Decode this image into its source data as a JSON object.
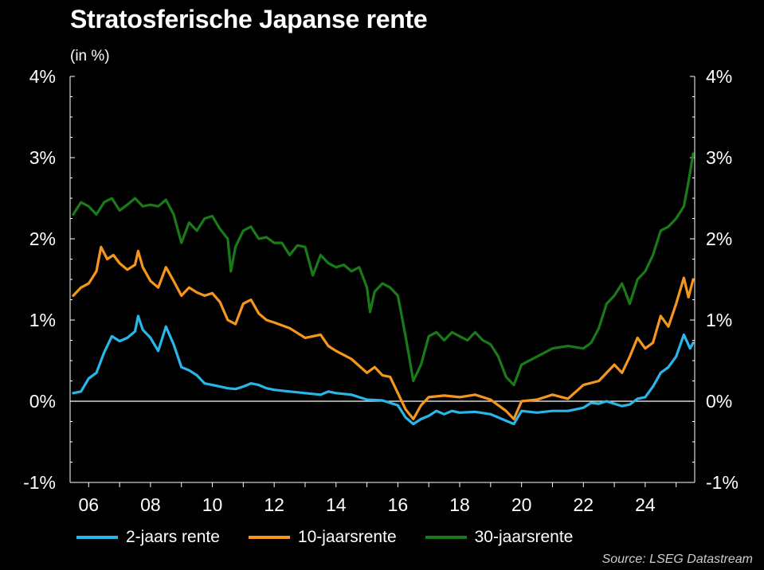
{
  "chart_data": {
    "type": "line",
    "title": "Stratosferische Japanse rente",
    "subtitle": "(in %)",
    "x_ticks": [
      "06",
      "08",
      "10",
      "12",
      "14",
      "16",
      "18",
      "20",
      "22",
      "24"
    ],
    "x_tick_years": [
      2006,
      2008,
      2010,
      2012,
      2014,
      2016,
      2018,
      2020,
      2022,
      2024
    ],
    "xlim": [
      2005.4,
      2025.6
    ],
    "y_ticks": [
      "-1%",
      "0%",
      "1%",
      "2%",
      "3%",
      "4%"
    ],
    "y_tick_values": [
      -1,
      0,
      1,
      2,
      3,
      4
    ],
    "ylim": [
      -1,
      4
    ],
    "y_axis_both_sides": true,
    "zero_line": true,
    "grid": false,
    "legend_position": "bottom",
    "series": [
      {
        "name": "2-jaars rente",
        "color": "#29b6e8",
        "points": [
          [
            2005.5,
            0.1
          ],
          [
            2005.75,
            0.12
          ],
          [
            2006.0,
            0.28
          ],
          [
            2006.25,
            0.35
          ],
          [
            2006.5,
            0.6
          ],
          [
            2006.75,
            0.8
          ],
          [
            2007.0,
            0.74
          ],
          [
            2007.25,
            0.78
          ],
          [
            2007.5,
            0.86
          ],
          [
            2007.6,
            1.05
          ],
          [
            2007.75,
            0.88
          ],
          [
            2008.0,
            0.78
          ],
          [
            2008.25,
            0.62
          ],
          [
            2008.5,
            0.92
          ],
          [
            2008.75,
            0.7
          ],
          [
            2009.0,
            0.42
          ],
          [
            2009.25,
            0.38
          ],
          [
            2009.5,
            0.32
          ],
          [
            2009.75,
            0.22
          ],
          [
            2010.0,
            0.2
          ],
          [
            2010.25,
            0.18
          ],
          [
            2010.5,
            0.16
          ],
          [
            2010.75,
            0.15
          ],
          [
            2011.0,
            0.18
          ],
          [
            2011.25,
            0.22
          ],
          [
            2011.5,
            0.2
          ],
          [
            2011.75,
            0.16
          ],
          [
            2012.0,
            0.14
          ],
          [
            2012.5,
            0.12
          ],
          [
            2013.0,
            0.1
          ],
          [
            2013.5,
            0.08
          ],
          [
            2013.75,
            0.12
          ],
          [
            2014.0,
            0.1
          ],
          [
            2014.5,
            0.08
          ],
          [
            2015.0,
            0.02
          ],
          [
            2015.5,
            0.01
          ],
          [
            2016.0,
            -0.05
          ],
          [
            2016.25,
            -0.2
          ],
          [
            2016.5,
            -0.28
          ],
          [
            2016.75,
            -0.22
          ],
          [
            2017.0,
            -0.18
          ],
          [
            2017.25,
            -0.12
          ],
          [
            2017.5,
            -0.16
          ],
          [
            2017.75,
            -0.12
          ],
          [
            2018.0,
            -0.14
          ],
          [
            2018.5,
            -0.13
          ],
          [
            2019.0,
            -0.16
          ],
          [
            2019.5,
            -0.24
          ],
          [
            2019.75,
            -0.28
          ],
          [
            2020.0,
            -0.12
          ],
          [
            2020.5,
            -0.14
          ],
          [
            2021.0,
            -0.12
          ],
          [
            2021.5,
            -0.12
          ],
          [
            2022.0,
            -0.08
          ],
          [
            2022.25,
            -0.02
          ],
          [
            2022.5,
            -0.03
          ],
          [
            2022.75,
            0.0
          ],
          [
            2023.0,
            -0.03
          ],
          [
            2023.25,
            -0.06
          ],
          [
            2023.5,
            -0.04
          ],
          [
            2023.75,
            0.03
          ],
          [
            2024.0,
            0.05
          ],
          [
            2024.25,
            0.18
          ],
          [
            2024.5,
            0.35
          ],
          [
            2024.75,
            0.42
          ],
          [
            2025.0,
            0.55
          ],
          [
            2025.25,
            0.82
          ],
          [
            2025.45,
            0.65
          ],
          [
            2025.55,
            0.72
          ]
        ]
      },
      {
        "name": "10-jaarsrente",
        "color": "#f5961e",
        "points": [
          [
            2005.5,
            1.3
          ],
          [
            2005.75,
            1.4
          ],
          [
            2006.0,
            1.45
          ],
          [
            2006.25,
            1.6
          ],
          [
            2006.4,
            1.9
          ],
          [
            2006.6,
            1.75
          ],
          [
            2006.8,
            1.8
          ],
          [
            2007.0,
            1.7
          ],
          [
            2007.25,
            1.62
          ],
          [
            2007.5,
            1.68
          ],
          [
            2007.6,
            1.85
          ],
          [
            2007.75,
            1.65
          ],
          [
            2008.0,
            1.48
          ],
          [
            2008.25,
            1.4
          ],
          [
            2008.5,
            1.65
          ],
          [
            2008.75,
            1.48
          ],
          [
            2009.0,
            1.3
          ],
          [
            2009.25,
            1.4
          ],
          [
            2009.5,
            1.34
          ],
          [
            2009.75,
            1.3
          ],
          [
            2010.0,
            1.33
          ],
          [
            2010.25,
            1.22
          ],
          [
            2010.5,
            1.0
          ],
          [
            2010.75,
            0.95
          ],
          [
            2011.0,
            1.2
          ],
          [
            2011.25,
            1.25
          ],
          [
            2011.5,
            1.08
          ],
          [
            2011.75,
            1.0
          ],
          [
            2012.0,
            0.97
          ],
          [
            2012.5,
            0.9
          ],
          [
            2013.0,
            0.78
          ],
          [
            2013.5,
            0.82
          ],
          [
            2013.75,
            0.68
          ],
          [
            2014.0,
            0.62
          ],
          [
            2014.5,
            0.52
          ],
          [
            2015.0,
            0.35
          ],
          [
            2015.25,
            0.42
          ],
          [
            2015.5,
            0.32
          ],
          [
            2015.75,
            0.3
          ],
          [
            2016.0,
            0.1
          ],
          [
            2016.25,
            -0.1
          ],
          [
            2016.5,
            -0.22
          ],
          [
            2016.75,
            -0.05
          ],
          [
            2017.0,
            0.05
          ],
          [
            2017.5,
            0.07
          ],
          [
            2018.0,
            0.05
          ],
          [
            2018.5,
            0.08
          ],
          [
            2019.0,
            0.02
          ],
          [
            2019.5,
            -0.12
          ],
          [
            2019.75,
            -0.22
          ],
          [
            2020.0,
            0.0
          ],
          [
            2020.5,
            0.02
          ],
          [
            2021.0,
            0.08
          ],
          [
            2021.5,
            0.03
          ],
          [
            2022.0,
            0.2
          ],
          [
            2022.5,
            0.25
          ],
          [
            2023.0,
            0.45
          ],
          [
            2023.25,
            0.35
          ],
          [
            2023.5,
            0.55
          ],
          [
            2023.75,
            0.78
          ],
          [
            2024.0,
            0.65
          ],
          [
            2024.25,
            0.72
          ],
          [
            2024.5,
            1.05
          ],
          [
            2024.75,
            0.92
          ],
          [
            2025.0,
            1.2
          ],
          [
            2025.25,
            1.52
          ],
          [
            2025.4,
            1.28
          ],
          [
            2025.55,
            1.5
          ]
        ]
      },
      {
        "name": "30-jaarsrente",
        "color": "#1a7a1a",
        "points": [
          [
            2005.5,
            2.3
          ],
          [
            2005.75,
            2.45
          ],
          [
            2006.0,
            2.4
          ],
          [
            2006.25,
            2.3
          ],
          [
            2006.5,
            2.45
          ],
          [
            2006.75,
            2.5
          ],
          [
            2007.0,
            2.35
          ],
          [
            2007.25,
            2.42
          ],
          [
            2007.5,
            2.5
          ],
          [
            2007.75,
            2.4
          ],
          [
            2008.0,
            2.42
          ],
          [
            2008.25,
            2.4
          ],
          [
            2008.5,
            2.48
          ],
          [
            2008.75,
            2.3
          ],
          [
            2009.0,
            1.95
          ],
          [
            2009.25,
            2.2
          ],
          [
            2009.5,
            2.1
          ],
          [
            2009.75,
            2.25
          ],
          [
            2010.0,
            2.28
          ],
          [
            2010.25,
            2.12
          ],
          [
            2010.5,
            2.0
          ],
          [
            2010.6,
            1.6
          ],
          [
            2010.75,
            1.9
          ],
          [
            2011.0,
            2.1
          ],
          [
            2011.25,
            2.15
          ],
          [
            2011.5,
            2.0
          ],
          [
            2011.75,
            2.02
          ],
          [
            2012.0,
            1.95
          ],
          [
            2012.25,
            1.95
          ],
          [
            2012.5,
            1.8
          ],
          [
            2012.75,
            1.92
          ],
          [
            2013.0,
            1.9
          ],
          [
            2013.25,
            1.55
          ],
          [
            2013.5,
            1.8
          ],
          [
            2013.75,
            1.7
          ],
          [
            2014.0,
            1.65
          ],
          [
            2014.25,
            1.68
          ],
          [
            2014.5,
            1.6
          ],
          [
            2014.75,
            1.65
          ],
          [
            2015.0,
            1.4
          ],
          [
            2015.1,
            1.1
          ],
          [
            2015.25,
            1.35
          ],
          [
            2015.5,
            1.45
          ],
          [
            2015.75,
            1.4
          ],
          [
            2016.0,
            1.3
          ],
          [
            2016.25,
            0.8
          ],
          [
            2016.5,
            0.25
          ],
          [
            2016.75,
            0.45
          ],
          [
            2017.0,
            0.8
          ],
          [
            2017.25,
            0.85
          ],
          [
            2017.5,
            0.75
          ],
          [
            2017.75,
            0.85
          ],
          [
            2018.0,
            0.8
          ],
          [
            2018.25,
            0.75
          ],
          [
            2018.5,
            0.85
          ],
          [
            2018.75,
            0.75
          ],
          [
            2019.0,
            0.7
          ],
          [
            2019.25,
            0.55
          ],
          [
            2019.5,
            0.3
          ],
          [
            2019.75,
            0.2
          ],
          [
            2020.0,
            0.45
          ],
          [
            2020.5,
            0.55
          ],
          [
            2021.0,
            0.65
          ],
          [
            2021.5,
            0.68
          ],
          [
            2022.0,
            0.65
          ],
          [
            2022.25,
            0.72
          ],
          [
            2022.5,
            0.9
          ],
          [
            2022.75,
            1.2
          ],
          [
            2023.0,
            1.3
          ],
          [
            2023.25,
            1.45
          ],
          [
            2023.5,
            1.2
          ],
          [
            2023.75,
            1.5
          ],
          [
            2024.0,
            1.6
          ],
          [
            2024.25,
            1.8
          ],
          [
            2024.5,
            2.1
          ],
          [
            2024.75,
            2.15
          ],
          [
            2025.0,
            2.25
          ],
          [
            2025.25,
            2.4
          ],
          [
            2025.4,
            2.7
          ],
          [
            2025.55,
            3.05
          ]
        ]
      }
    ],
    "source": "Source: LSEG Datastream"
  }
}
